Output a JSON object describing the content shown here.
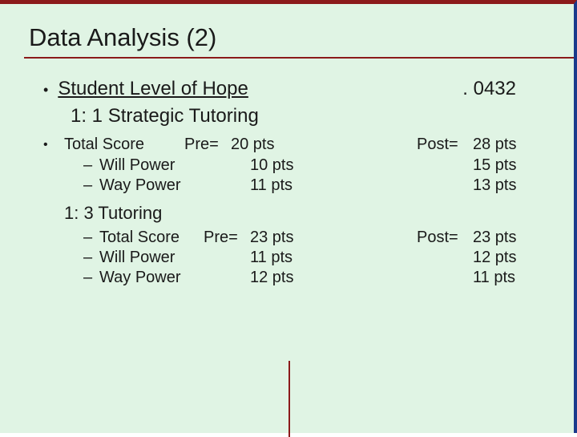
{
  "colors": {
    "background": "#e0f4e4",
    "border_top": "#8b1a1a",
    "border_right": "#1a3a8b",
    "text": "#1a1a1a",
    "rule": "#8b1a1a"
  },
  "title": "Data Analysis (2)",
  "heading": {
    "label": "Student Level of Hope",
    "pvalue": ". 0432",
    "subtitle": "1: 1 Strategic Tutoring"
  },
  "group1": {
    "total": {
      "label": "Total Score",
      "pre_label": "Pre=",
      "pre_val": "20 pts",
      "post_label": "Post=",
      "post_val": "28 pts"
    },
    "will": {
      "label": "Will Power",
      "pre_val": "10 pts",
      "post_val": "15 pts"
    },
    "way": {
      "label": "Way Power",
      "pre_val": "11 pts",
      "post_val": "13 pts"
    }
  },
  "section2_title": "1: 3 Tutoring",
  "group2": {
    "total": {
      "label": "Total Score",
      "pre_label": "Pre=",
      "pre_val": "23 pts",
      "post_label": "Post=",
      "post_val": "23 pts"
    },
    "will": {
      "label": "Will Power",
      "pre_val": "11 pts",
      "post_val": "12 pts"
    },
    "way": {
      "label": "Way Power",
      "pre_val": "12 pts",
      "post_val": "11 pts"
    }
  }
}
